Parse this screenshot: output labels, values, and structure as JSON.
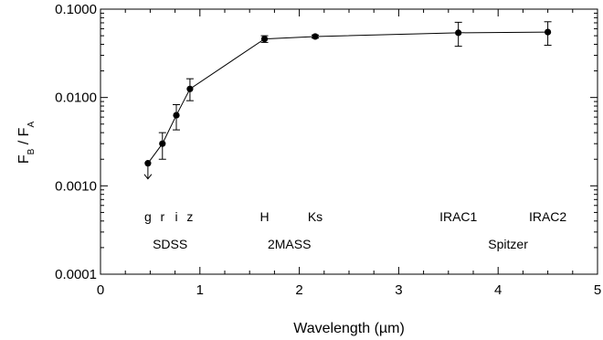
{
  "chart_data": {
    "type": "line",
    "xlabel": "Wavelength (µm)",
    "ylabel": "F_B / F_A",
    "ylabel_parts": {
      "base1": "F",
      "sub1": "B",
      "slash": " / ",
      "base2": "F",
      "sub2": "A"
    },
    "xlim": [
      0,
      5
    ],
    "ylim": [
      0.0001,
      0.1
    ],
    "yscale": "log",
    "xticks": [
      0,
      1,
      2,
      3,
      4,
      5
    ],
    "xtick_labels": [
      "0",
      "1",
      "2",
      "3",
      "4",
      "5"
    ],
    "yticks": [
      0.0001,
      0.001,
      0.01,
      0.1
    ],
    "ytick_labels": [
      "0.0001",
      "0.0010",
      "0.0100",
      "0.1000"
    ],
    "grid": false,
    "series": [
      {
        "points": [
          {
            "x": 0.477,
            "y": 0.0018,
            "upper_limit": true
          },
          {
            "x": 0.623,
            "y": 0.003,
            "err_low": 0.002,
            "err_high": 0.004
          },
          {
            "x": 0.763,
            "y": 0.0063,
            "err_low": 0.0043,
            "err_high": 0.0083
          },
          {
            "x": 0.9,
            "y": 0.0125,
            "err_low": 0.0092,
            "err_high": 0.0163
          },
          {
            "x": 1.65,
            "y": 0.046,
            "err_low": 0.042,
            "err_high": 0.05
          },
          {
            "x": 2.16,
            "y": 0.049,
            "err_low": 0.047,
            "err_high": 0.051
          },
          {
            "x": 3.6,
            "y": 0.054,
            "err_low": 0.038,
            "err_high": 0.071
          },
          {
            "x": 4.5,
            "y": 0.055,
            "err_low": 0.039,
            "err_high": 0.072
          }
        ]
      }
    ],
    "annotations": {
      "bands": [
        {
          "text": "g",
          "x": 0.477
        },
        {
          "text": "r",
          "x": 0.623
        },
        {
          "text": "i",
          "x": 0.763
        },
        {
          "text": "z",
          "x": 0.9
        },
        {
          "text": "H",
          "x": 1.65
        },
        {
          "text": "Ks",
          "x": 2.16
        },
        {
          "text": "IRAC1",
          "x": 3.6
        },
        {
          "text": "IRAC2",
          "x": 4.5
        }
      ],
      "groups": [
        {
          "text": "SDSS",
          "x": 0.7
        },
        {
          "text": "2MASS",
          "x": 1.9
        },
        {
          "text": "Spitzer",
          "x": 4.1
        }
      ],
      "band_label_y": 0.00045,
      "group_label_y": 0.00022
    }
  }
}
